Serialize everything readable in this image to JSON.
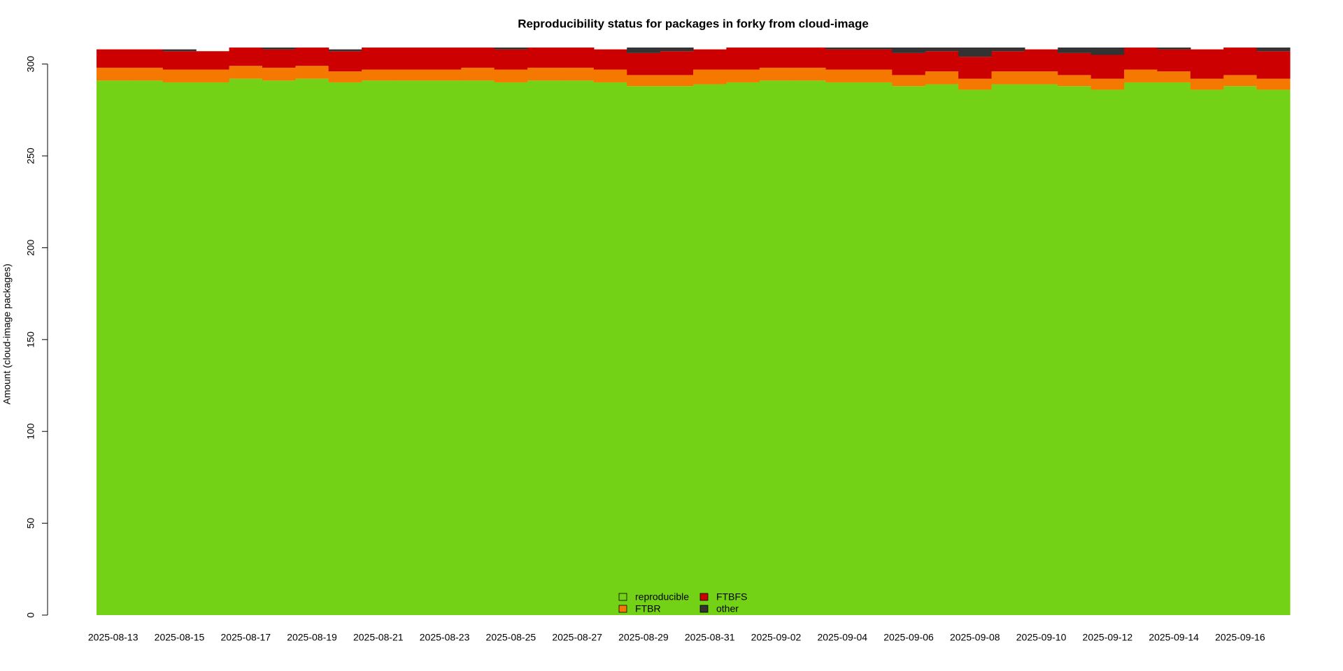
{
  "chart_data": {
    "type": "stacked-step-area",
    "title": "Reproducibility status for packages in forky from cloud-image",
    "y_label": "Amount (cloud-image packages)",
    "categories": [
      "2025-08-13",
      null,
      "2025-08-15",
      null,
      "2025-08-17",
      null,
      "2025-08-19",
      null,
      "2025-08-21",
      null,
      "2025-08-23",
      null,
      "2025-08-25",
      null,
      "2025-08-27",
      null,
      "2025-08-29",
      null,
      "2025-08-31",
      null,
      "2025-09-02",
      null,
      "2025-09-04",
      null,
      "2025-09-06",
      null,
      "2025-09-08",
      null,
      "2025-09-10",
      null,
      "2025-09-12",
      null,
      "2025-09-14",
      null,
      "2025-09-16",
      null
    ],
    "series": [
      {
        "name": "reproducible",
        "color": "#73d216",
        "values": [
          291,
          291,
          290,
          290,
          292,
          291,
          292,
          290,
          291,
          291,
          291,
          291,
          290,
          291,
          291,
          290,
          288,
          288,
          289,
          290,
          291,
          291,
          290,
          290,
          288,
          289,
          286,
          289,
          289,
          288,
          286,
          290,
          290,
          286,
          288,
          286
        ]
      },
      {
        "name": "FTBR",
        "color": "#f57900",
        "values": [
          7,
          7,
          7,
          7,
          7,
          7,
          7,
          6,
          6,
          6,
          6,
          7,
          7,
          7,
          7,
          7,
          6,
          6,
          8,
          7,
          7,
          7,
          7,
          7,
          6,
          7,
          6,
          7,
          7,
          6,
          6,
          7,
          6,
          6,
          6,
          6
        ]
      },
      {
        "name": "FTBFS",
        "color": "#cc0000",
        "values": [
          10,
          10,
          10,
          10,
          10,
          10,
          10,
          11,
          12,
          12,
          12,
          11,
          11,
          11,
          11,
          11,
          12,
          13,
          11,
          12,
          11,
          11,
          11,
          11,
          12,
          11,
          12,
          11,
          12,
          12,
          13,
          12,
          12,
          16,
          15,
          15
        ]
      },
      {
        "name": "other",
        "color": "#333333",
        "values": [
          0,
          0,
          1,
          0,
          0,
          1,
          0,
          1,
          0,
          0,
          0,
          0,
          1,
          0,
          0,
          0,
          3,
          2,
          0,
          0,
          0,
          0,
          1,
          1,
          3,
          2,
          5,
          2,
          0,
          3,
          4,
          0,
          1,
          0,
          0,
          2
        ]
      }
    ],
    "ylim": [
      0,
      309
    ],
    "yticks": [
      0,
      50,
      100,
      150,
      200,
      250,
      300
    ]
  }
}
